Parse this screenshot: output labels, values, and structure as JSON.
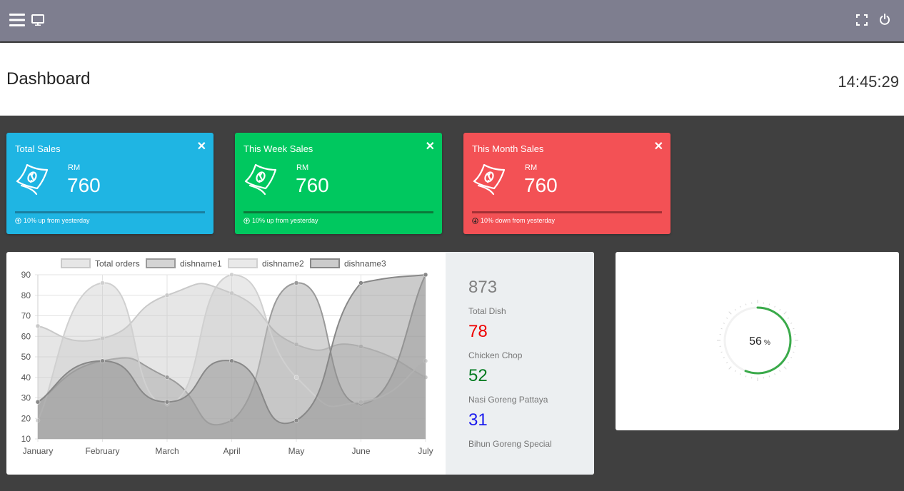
{
  "topbar": {
    "menu_icon": "hamburger-menu-icon",
    "monitor_icon": "monitor-icon",
    "fullscreen_icon": "fullscreen-icon",
    "power_icon": "power-icon"
  },
  "header": {
    "title": "Dashboard",
    "clock": "14:45:29"
  },
  "stat_cards": [
    {
      "title": "Total Sales",
      "currency": "RM",
      "value": "760",
      "footer": "10% up from yesterday",
      "trend": "up",
      "color": "#1fb5e3",
      "bar_color": "#1a7fa0",
      "icon": "money-bill-icon"
    },
    {
      "title": "This Week Sales",
      "currency": "RM",
      "value": "760",
      "footer": "10% up from yesterday",
      "trend": "up",
      "color": "#00c85f",
      "bar_color": "#0b7a3a",
      "icon": "money-bill-icon"
    },
    {
      "title": "This Month Sales",
      "currency": "RM",
      "value": "760",
      "footer": "10% down from yesterday",
      "trend": "down",
      "color": "#f35155",
      "bar_color": "#a33035",
      "icon": "money-bill-icon"
    }
  ],
  "chart_data": {
    "type": "area",
    "categories": [
      "January",
      "February",
      "March",
      "April",
      "May",
      "June",
      "July"
    ],
    "ylim": [
      10,
      90
    ],
    "yticks": [
      10,
      20,
      30,
      40,
      50,
      60,
      70,
      80,
      90
    ],
    "grid": true,
    "legend_position": "top",
    "series": [
      {
        "name": "Total orders",
        "values": [
          65,
          59,
          80,
          81,
          56,
          55,
          40
        ]
      },
      {
        "name": "dishname1",
        "values": [
          28,
          48,
          40,
          19,
          86,
          27,
          90
        ]
      },
      {
        "name": "dishname2",
        "values": [
          19,
          86,
          27,
          90,
          40,
          28,
          48
        ]
      },
      {
        "name": "dishname3",
        "values": [
          28,
          48,
          28,
          48,
          19,
          86,
          90
        ]
      }
    ],
    "colors": {
      "fill": [
        "rgba(200,200,200,0.45)",
        "rgba(160,160,160,0.45)",
        "rgba(200,200,200,0.4)",
        "rgba(140,140,140,0.45)"
      ],
      "stroke": [
        "#c9c9c9",
        "#9a9a9a",
        "#d0d0d0",
        "#888888"
      ]
    }
  },
  "summary": [
    {
      "value": "873",
      "label": "Total Dish",
      "color": "#808080"
    },
    {
      "value": "78",
      "label": "Chicken Chop",
      "color": "#ee0000"
    },
    {
      "value": "52",
      "label": "Nasi Goreng Pattaya",
      "color": "#007a1f"
    },
    {
      "value": "31",
      "label": "Bihun Goreng Special",
      "color": "#1a1aee"
    }
  ],
  "gauge": {
    "percent": 56,
    "value_text": "56",
    "unit": "%",
    "color": "#3aaa4a"
  }
}
